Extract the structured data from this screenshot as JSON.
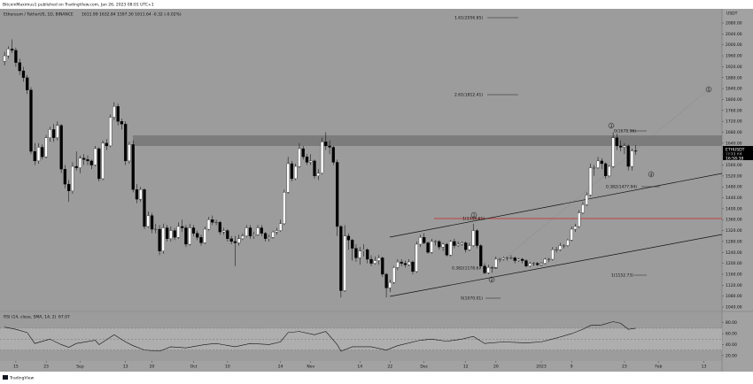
{
  "header": "BitcoinMaximus1 published on TradingView.com, Jan 26, 2023 08:01 UTC+1",
  "footer": "TradingView",
  "chart_data": {
    "type": "candlestick",
    "title": "Ethereum / TetherUS, 1D, BINANCE",
    "ohlc_text": "1611.99  1632.84  1597.30  1611.64  -0.32 (-0.02%)",
    "y_unit": "USDT",
    "price_tag": {
      "symbol": "ETHUSDT",
      "price": "1611.64",
      "countdown": "16:58:38"
    },
    "up_color": "#ffffff",
    "down_color": "#000000",
    "candles": [
      [
        1940,
        1975,
        1925,
        1960
      ],
      [
        1960,
        1995,
        1950,
        1985
      ],
      [
        1985,
        2020,
        1970,
        1980
      ],
      [
        1980,
        1990,
        1920,
        1935
      ],
      [
        1935,
        1950,
        1890,
        1905
      ],
      [
        1905,
        1920,
        1865,
        1880
      ],
      [
        1880,
        1890,
        1820,
        1835
      ],
      [
        1835,
        1845,
        1600,
        1610
      ],
      [
        1610,
        1640,
        1560,
        1575
      ],
      [
        1575,
        1640,
        1565,
        1625
      ],
      [
        1625,
        1635,
        1580,
        1590
      ],
      [
        1590,
        1670,
        1585,
        1660
      ],
      [
        1660,
        1700,
        1645,
        1690
      ],
      [
        1690,
        1710,
        1645,
        1660
      ],
      [
        1660,
        1720,
        1650,
        1705
      ],
      [
        1705,
        1710,
        1530,
        1545
      ],
      [
        1545,
        1560,
        1475,
        1490
      ],
      [
        1490,
        1505,
        1425,
        1465
      ],
      [
        1465,
        1570,
        1455,
        1555
      ],
      [
        1555,
        1610,
        1540,
        1550
      ],
      [
        1550,
        1595,
        1530,
        1585
      ],
      [
        1585,
        1600,
        1560,
        1580
      ],
      [
        1580,
        1595,
        1560,
        1575
      ],
      [
        1575,
        1580,
        1545,
        1560
      ],
      [
        1560,
        1630,
        1555,
        1620
      ],
      [
        1620,
        1625,
        1500,
        1510
      ],
      [
        1510,
        1650,
        1505,
        1640
      ],
      [
        1640,
        1655,
        1615,
        1630
      ],
      [
        1630,
        1745,
        1625,
        1735
      ],
      [
        1735,
        1790,
        1725,
        1775
      ],
      [
        1775,
        1785,
        1705,
        1720
      ],
      [
        1720,
        1730,
        1690,
        1710
      ],
      [
        1710,
        1720,
        1560,
        1575
      ],
      [
        1575,
        1645,
        1565,
        1635
      ],
      [
        1635,
        1650,
        1460,
        1470
      ],
      [
        1470,
        1490,
        1420,
        1435
      ],
      [
        1435,
        1480,
        1425,
        1470
      ],
      [
        1470,
        1475,
        1325,
        1335
      ],
      [
        1335,
        1390,
        1330,
        1375
      ],
      [
        1375,
        1385,
        1310,
        1325
      ],
      [
        1325,
        1345,
        1310,
        1325
      ],
      [
        1325,
        1340,
        1230,
        1245
      ],
      [
        1245,
        1345,
        1235,
        1330
      ],
      [
        1330,
        1340,
        1280,
        1290
      ],
      [
        1290,
        1335,
        1280,
        1320
      ],
      [
        1320,
        1330,
        1285,
        1295
      ],
      [
        1295,
        1350,
        1290,
        1335
      ],
      [
        1335,
        1360,
        1315,
        1330
      ],
      [
        1330,
        1340,
        1260,
        1270
      ],
      [
        1270,
        1345,
        1265,
        1330
      ],
      [
        1330,
        1340,
        1300,
        1310
      ],
      [
        1310,
        1320,
        1285,
        1295
      ],
      [
        1295,
        1305,
        1265,
        1275
      ],
      [
        1275,
        1335,
        1270,
        1325
      ],
      [
        1325,
        1370,
        1320,
        1360
      ],
      [
        1360,
        1375,
        1340,
        1350
      ],
      [
        1350,
        1360,
        1340,
        1350
      ],
      [
        1350,
        1355,
        1305,
        1315
      ],
      [
        1315,
        1330,
        1305,
        1320
      ],
      [
        1320,
        1325,
        1280,
        1290
      ],
      [
        1290,
        1300,
        1270,
        1280
      ],
      [
        1280,
        1300,
        1190,
        1275
      ],
      [
        1275,
        1305,
        1265,
        1290
      ],
      [
        1290,
        1310,
        1285,
        1300
      ],
      [
        1300,
        1340,
        1295,
        1330
      ],
      [
        1330,
        1340,
        1290,
        1300
      ],
      [
        1300,
        1315,
        1290,
        1305
      ],
      [
        1305,
        1340,
        1300,
        1330
      ],
      [
        1330,
        1340,
        1300,
        1310
      ],
      [
        1310,
        1315,
        1280,
        1290
      ],
      [
        1290,
        1305,
        1280,
        1295
      ],
      [
        1295,
        1320,
        1290,
        1315
      ],
      [
        1315,
        1330,
        1305,
        1320
      ],
      [
        1320,
        1360,
        1315,
        1345
      ],
      [
        1345,
        1470,
        1340,
        1460
      ],
      [
        1460,
        1590,
        1455,
        1565
      ],
      [
        1565,
        1575,
        1500,
        1510
      ],
      [
        1510,
        1565,
        1505,
        1555
      ],
      [
        1555,
        1640,
        1550,
        1620
      ],
      [
        1620,
        1630,
        1580,
        1590
      ],
      [
        1590,
        1600,
        1560,
        1570
      ],
      [
        1570,
        1600,
        1560,
        1575
      ],
      [
        1575,
        1580,
        1510,
        1520
      ],
      [
        1520,
        1545,
        1505,
        1530
      ],
      [
        1530,
        1660,
        1525,
        1645
      ],
      [
        1645,
        1680,
        1615,
        1630
      ],
      [
        1630,
        1650,
        1600,
        1625
      ],
      [
        1625,
        1630,
        1560,
        1570
      ],
      [
        1570,
        1580,
        1300,
        1335
      ],
      [
        1335,
        1340,
        1075,
        1100
      ],
      [
        1100,
        1340,
        1095,
        1300
      ],
      [
        1300,
        1310,
        1250,
        1285
      ],
      [
        1285,
        1290,
        1210,
        1255
      ],
      [
        1255,
        1270,
        1205,
        1220
      ],
      [
        1220,
        1260,
        1195,
        1245
      ],
      [
        1245,
        1270,
        1225,
        1250
      ],
      [
        1250,
        1255,
        1200,
        1215
      ],
      [
        1215,
        1230,
        1190,
        1200
      ],
      [
        1200,
        1225,
        1195,
        1210
      ],
      [
        1210,
        1230,
        1195,
        1220
      ],
      [
        1220,
        1225,
        1150,
        1160
      ],
      [
        1160,
        1165,
        1075,
        1110
      ],
      [
        1110,
        1140,
        1095,
        1130
      ],
      [
        1130,
        1190,
        1125,
        1185
      ],
      [
        1185,
        1215,
        1175,
        1205
      ],
      [
        1205,
        1215,
        1190,
        1200
      ],
      [
        1200,
        1210,
        1185,
        1195
      ],
      [
        1195,
        1215,
        1190,
        1205
      ],
      [
        1205,
        1210,
        1160,
        1170
      ],
      [
        1170,
        1280,
        1165,
        1270
      ],
      [
        1270,
        1305,
        1260,
        1295
      ],
      [
        1295,
        1310,
        1270,
        1275
      ],
      [
        1275,
        1280,
        1235,
        1240
      ],
      [
        1240,
        1290,
        1235,
        1280
      ],
      [
        1280,
        1285,
        1265,
        1280
      ],
      [
        1280,
        1285,
        1250,
        1260
      ],
      [
        1260,
        1275,
        1245,
        1270
      ],
      [
        1270,
        1275,
        1225,
        1230
      ],
      [
        1230,
        1285,
        1225,
        1280
      ],
      [
        1280,
        1290,
        1255,
        1265
      ],
      [
        1265,
        1280,
        1260,
        1270
      ],
      [
        1270,
        1280,
        1265,
        1275
      ],
      [
        1275,
        1280,
        1240,
        1250
      ],
      [
        1250,
        1275,
        1245,
        1265
      ],
      [
        1265,
        1345,
        1260,
        1320
      ],
      [
        1320,
        1325,
        1255,
        1265
      ],
      [
        1265,
        1270,
        1180,
        1190
      ],
      [
        1190,
        1200,
        1160,
        1165
      ],
      [
        1165,
        1195,
        1160,
        1185
      ],
      [
        1185,
        1190,
        1165,
        1185
      ],
      [
        1185,
        1225,
        1180,
        1215
      ],
      [
        1215,
        1220,
        1205,
        1215
      ],
      [
        1215,
        1225,
        1210,
        1220
      ],
      [
        1220,
        1225,
        1210,
        1220
      ],
      [
        1220,
        1230,
        1215,
        1220
      ],
      [
        1220,
        1225,
        1200,
        1210
      ],
      [
        1210,
        1220,
        1205,
        1215
      ],
      [
        1215,
        1220,
        1200,
        1210
      ],
      [
        1210,
        1215,
        1185,
        1190
      ],
      [
        1190,
        1205,
        1185,
        1200
      ],
      [
        1200,
        1205,
        1190,
        1200
      ],
      [
        1200,
        1205,
        1190,
        1195
      ],
      [
        1195,
        1205,
        1190,
        1200
      ],
      [
        1200,
        1220,
        1195,
        1215
      ],
      [
        1215,
        1220,
        1205,
        1215
      ],
      [
        1215,
        1260,
        1210,
        1250
      ],
      [
        1250,
        1260,
        1240,
        1250
      ],
      [
        1250,
        1275,
        1245,
        1265
      ],
      [
        1265,
        1270,
        1255,
        1265
      ],
      [
        1265,
        1290,
        1260,
        1285
      ],
      [
        1285,
        1335,
        1280,
        1325
      ],
      [
        1325,
        1345,
        1315,
        1335
      ],
      [
        1335,
        1395,
        1330,
        1385
      ],
      [
        1385,
        1425,
        1380,
        1415
      ],
      [
        1415,
        1460,
        1410,
        1450
      ],
      [
        1450,
        1565,
        1445,
        1550
      ],
      [
        1550,
        1560,
        1520,
        1550
      ],
      [
        1550,
        1590,
        1545,
        1575
      ],
      [
        1575,
        1585,
        1545,
        1565
      ],
      [
        1565,
        1570,
        1510,
        1520
      ],
      [
        1520,
        1560,
        1515,
        1555
      ],
      [
        1555,
        1680,
        1550,
        1660
      ],
      [
        1660,
        1675,
        1615,
        1630
      ],
      [
        1630,
        1650,
        1610,
        1625
      ],
      [
        1625,
        1640,
        1600,
        1630
      ],
      [
        1630,
        1635,
        1540,
        1555
      ],
      [
        1555,
        1620,
        1540,
        1612
      ],
      [
        1611.99,
        1632.84,
        1597.3,
        1611.64
      ]
    ],
    "xlim": [
      -1.2,
      189.8
    ],
    "xticks": [
      {
        "value": 3,
        "label": "15"
      },
      {
        "value": 11,
        "label": "23"
      },
      {
        "value": 20,
        "label": "Sep"
      },
      {
        "value": 32,
        "label": "13"
      },
      {
        "value": 39,
        "label": "20"
      },
      {
        "value": 50,
        "label": "Oct"
      },
      {
        "value": 59,
        "label": "10"
      },
      {
        "value": 73,
        "label": "24"
      },
      {
        "value": 81,
        "label": "Nov"
      },
      {
        "value": 94,
        "label": "14"
      },
      {
        "value": 102,
        "label": "22"
      },
      {
        "value": 111,
        "label": "Dec"
      },
      {
        "value": 122,
        "label": "12"
      },
      {
        "value": 130,
        "label": "20"
      },
      {
        "value": 142,
        "label": "2023"
      },
      {
        "value": 150,
        "label": "9"
      },
      {
        "value": 164,
        "label": "23"
      },
      {
        "value": 173,
        "label": "Feb"
      },
      {
        "value": 185,
        "label": "13"
      }
    ],
    "ylim": [
      1027,
      2132
    ],
    "yticks": [
      {
        "value": 2080,
        "label": "2080.00"
      },
      {
        "value": 2040,
        "label": "2040.00"
      },
      {
        "value": 2000,
        "label": "2000.00"
      },
      {
        "value": 1960,
        "label": "1960.00"
      },
      {
        "value": 1920,
        "label": "1920.00"
      },
      {
        "value": 1880,
        "label": "1880.00"
      },
      {
        "value": 1840,
        "label": "1840.00"
      },
      {
        "value": 1800,
        "label": "1800.00"
      },
      {
        "value": 1760,
        "label": "1760.00"
      },
      {
        "value": 1720,
        "label": "1720.00"
      },
      {
        "value": 1680,
        "label": "1680.00"
      },
      {
        "value": 1640,
        "label": "1640.00"
      },
      {
        "value": 1600,
        "label": "1600.00"
      },
      {
        "value": 1560,
        "label": "1560.00"
      },
      {
        "value": 1520,
        "label": "1520.00"
      },
      {
        "value": 1480,
        "label": "1480.00"
      },
      {
        "value": 1440,
        "label": "1440.00"
      },
      {
        "value": 1400,
        "label": "1400.00"
      },
      {
        "value": 1360,
        "label": "1360.00"
      },
      {
        "value": 1320,
        "label": "1320.00"
      },
      {
        "value": 1280,
        "label": "1280.00"
      },
      {
        "value": 1240,
        "label": "1240.00"
      },
      {
        "value": 1200,
        "label": "1200.00"
      },
      {
        "value": 1160,
        "label": "1160.00"
      },
      {
        "value": 1120,
        "label": "1120.00"
      },
      {
        "value": 1080,
        "label": "1080.00"
      },
      {
        "value": 1040,
        "label": "1040.00"
      }
    ],
    "annotations": {
      "fib": [
        "1.61(2056.85)",
        "2.61(1812.41)",
        "0(1678.96)",
        "0.382(1477.94)",
        "1(1354.61)",
        "0.382(1178.6)",
        "0(1070.01)",
        "1(1152.73)"
      ],
      "waves": [
        "1",
        "2",
        "3",
        "4",
        "5"
      ]
    },
    "rsi": {
      "title": "RSI (14, close, SMA, 14, 2)",
      "value_label": "67.07",
      "color": "#111111",
      "x": [
        0,
        3,
        6,
        8,
        12,
        15,
        17,
        19,
        24,
        25,
        29,
        32,
        34,
        37,
        41,
        44,
        48,
        53,
        56,
        61,
        65,
        70,
        73,
        75,
        78,
        82,
        85,
        88,
        89,
        92,
        97,
        101,
        104,
        110,
        113,
        117,
        121,
        124,
        127,
        132,
        138,
        142,
        146,
        150,
        153,
        155,
        158,
        161,
        163,
        165,
        167
      ],
      "values": [
        72,
        68,
        62,
        42,
        50,
        40,
        35,
        42,
        48,
        40,
        58,
        45,
        38,
        30,
        28,
        36,
        34,
        40,
        42,
        36,
        42,
        40,
        45,
        62,
        64,
        58,
        64,
        40,
        28,
        36,
        36,
        30,
        38,
        48,
        50,
        46,
        50,
        55,
        42,
        45,
        43,
        45,
        52,
        60,
        68,
        75,
        76,
        82,
        79,
        68,
        70
      ],
      "ylim": [
        10,
        99
      ],
      "yticks": [
        {
          "value": 80,
          "label": "80.00"
        },
        {
          "value": 60,
          "label": "60.00"
        },
        {
          "value": 40,
          "label": "40.00"
        },
        {
          "value": 20,
          "label": "20.00"
        }
      ]
    }
  }
}
